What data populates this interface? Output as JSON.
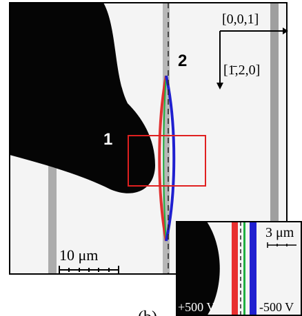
{
  "labels": {
    "direction_1": "[0,0,1]",
    "direction_2": "[1̄,2,0]",
    "point_2": "2",
    "point_1": "1",
    "scale_main": "10 μm",
    "scale_inset": "3 μm",
    "voltage_left": "+500 V",
    "voltage_right": "-500 V",
    "panel": "(b)"
  }
}
